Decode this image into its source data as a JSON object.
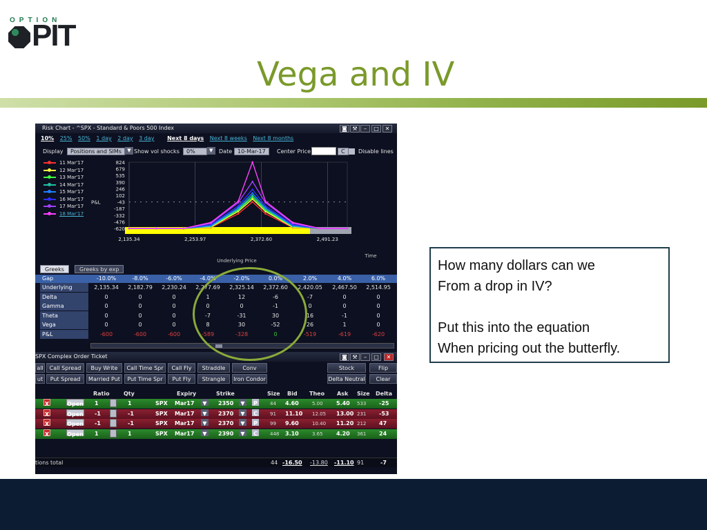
{
  "slide": {
    "logo_top": "OPTION",
    "logo_main": "PIT",
    "title": "Vega and IV",
    "callout_lines": [
      "How many dollars can we",
      "From a drop in IV?",
      "",
      "Put this into the equation",
      "When pricing out the butterfly."
    ]
  },
  "risk_chart": {
    "window_title": "Risk Chart - ^SPX - Standard & Poors 500 Index",
    "range_links": [
      "10%",
      "25%",
      "50%",
      "1 day",
      "2 day",
      "3 day"
    ],
    "period_links": [
      "Next 8 days",
      "Next 8 weeks",
      "Next 8 months"
    ],
    "display_label": "Display",
    "display_value": "Positions and SIMs",
    "vol_label": "Show vol shocks",
    "vol_value": "0%",
    "date_label": "Date",
    "date_value": "10-Mar-17",
    "center_label": "Center Price",
    "center_btn": "C",
    "disable_label": "Disable lines",
    "legend": [
      {
        "label": "11 Mar'17",
        "color": "#ff3030"
      },
      {
        "label": "12 Mar'17",
        "color": "#ffff40"
      },
      {
        "label": "13 Mar'17",
        "color": "#40ff40"
      },
      {
        "label": "14 Mar'17",
        "color": "#20c0a0"
      },
      {
        "label": "15 Mar'17",
        "color": "#2080ff"
      },
      {
        "label": "16 Mar'17",
        "color": "#3030ff"
      },
      {
        "label": "17 Mar'17",
        "color": "#a040ff"
      },
      {
        "label": "18 Mar'17",
        "color": "#ff40ff"
      }
    ],
    "y_axis_label": "P&L",
    "x_axis_label": "Underlying Price",
    "time_label": "Time"
  },
  "chart_data": {
    "type": "line",
    "y_ticks": [
      "824",
      "679",
      "535",
      "390",
      "246",
      "102",
      "-43",
      "-187",
      "-332",
      "-476",
      "-620"
    ],
    "x_ticks": [
      "2,135.34",
      "2,253.97",
      "2,372.60",
      "2,491.23"
    ],
    "ylim": [
      -620,
      824
    ],
    "x": [
      2135.34,
      2182.79,
      2230.24,
      2277.69,
      2325.14,
      2350,
      2372.6,
      2420.05,
      2467.5,
      2514.95
    ],
    "series": [
      {
        "values": [
          -620,
          -620,
          -620,
          -600,
          -300,
          -43,
          -300,
          -600,
          -620,
          -620
        ],
        "color": "#ff3030"
      },
      {
        "values": [
          -620,
          -620,
          -620,
          -590,
          -250,
          20,
          -250,
          -590,
          -620,
          -620
        ],
        "color": "#ffff40"
      },
      {
        "values": [
          -620,
          -620,
          -620,
          -580,
          -220,
          60,
          -220,
          -580,
          -620,
          -620
        ],
        "color": "#40ff40"
      },
      {
        "values": [
          -620,
          -620,
          -620,
          -570,
          -200,
          100,
          -200,
          -570,
          -620,
          -620
        ],
        "color": "#20c0a0"
      },
      {
        "values": [
          -620,
          -620,
          -620,
          -560,
          -170,
          150,
          -170,
          -560,
          -620,
          -620
        ],
        "color": "#2080ff"
      },
      {
        "values": [
          -620,
          -620,
          -620,
          -540,
          -130,
          230,
          -130,
          -540,
          -620,
          -620
        ],
        "color": "#3030ff"
      },
      {
        "values": [
          -620,
          -620,
          -620,
          -510,
          -60,
          400,
          -60,
          -510,
          -620,
          -620
        ],
        "color": "#a040ff"
      },
      {
        "values": [
          -620,
          -620,
          -620,
          -490,
          -30,
          824,
          -30,
          -490,
          -620,
          -620
        ],
        "color": "#ff40ff"
      }
    ]
  },
  "greeks": {
    "tabs": [
      "Greeks",
      "Greeks by exp"
    ],
    "rows": [
      {
        "label": "Gap",
        "cells": [
          "-10.0%",
          "-8.0%",
          "-6.0%",
          "-4.0%",
          "-2.0%",
          "0.0%",
          "2.0%",
          "4.0%",
          "6.0%"
        ]
      },
      {
        "label": "Underlying",
        "cells": [
          "2,135.34",
          "2,182.79",
          "2,230.24",
          "2,277.69",
          "2,325.14",
          "2,372.60",
          "2,420.05",
          "2,467.50",
          "2,514.95"
        ]
      },
      {
        "label": "Delta",
        "cells": [
          "0",
          "0",
          "0",
          "1",
          "12",
          "-6",
          "-7",
          "0",
          "0"
        ]
      },
      {
        "label": "Gamma",
        "cells": [
          "0",
          "0",
          "0",
          "0",
          "0",
          "-1",
          "0",
          "0",
          "0"
        ]
      },
      {
        "label": "Theta",
        "cells": [
          "0",
          "0",
          "0",
          "-7",
          "-31",
          "30",
          "16",
          "-1",
          "0"
        ]
      },
      {
        "label": "Vega",
        "cells": [
          "0",
          "0",
          "0",
          "8",
          "30",
          "-52",
          "26",
          "1",
          "0"
        ]
      },
      {
        "label": "P&L",
        "cells": [
          "-600",
          "-600",
          "-600",
          "-589",
          "-328",
          "0",
          "-519",
          "-619",
          "-620"
        ]
      }
    ]
  },
  "ticket": {
    "title": "SPX Complex Order Ticket",
    "row1": [
      "all",
      "Call Spread",
      "Buy Write",
      "Call Time Spr",
      "Call Fly",
      "Straddle",
      "Conv",
      "Stock",
      "Flip"
    ],
    "row2": [
      "ut",
      "Put Spread",
      "Married Put",
      "Put Time Spr",
      "Put Fly",
      "Strangle",
      "Iron Condor",
      "Delta Neutral",
      "Clear"
    ],
    "headers": [
      "Ratio",
      "Qty",
      "Expiry",
      "Strike",
      "Size",
      "Bid",
      "Theo",
      "Ask",
      "Size",
      "Delta"
    ],
    "legs": [
      {
        "open": "Open",
        "ratio": "1",
        "qty": "1",
        "sym": "SPX",
        "expiry": "Mar17",
        "strike": "2350",
        "pc": "P",
        "bsize": "44",
        "bid": "4.60",
        "theo": "5.00",
        "ask": "5.40",
        "asize": "533",
        "delta": "-25",
        "side": "g"
      },
      {
        "open": "Open",
        "ratio": "-1",
        "qty": "-1",
        "sym": "SPX",
        "expiry": "Mar17",
        "strike": "2370",
        "pc": "C",
        "bsize": "91",
        "bid": "11.10",
        "theo": "12.05",
        "ask": "13.00",
        "asize": "231",
        "delta": "-53",
        "side": "r"
      },
      {
        "open": "Open",
        "ratio": "-1",
        "qty": "-1",
        "sym": "SPX",
        "expiry": "Mar17",
        "strike": "2370",
        "pc": "P",
        "bsize": "99",
        "bid": "9.60",
        "theo": "10.40",
        "ask": "11.20",
        "asize": "212",
        "delta": "47",
        "side": "r"
      },
      {
        "open": "Open",
        "ratio": "1",
        "qty": "1",
        "sym": "SPX",
        "expiry": "Mar17",
        "strike": "2390",
        "pc": "C",
        "bsize": "448",
        "bid": "3.10",
        "theo": "3.65",
        "ask": "4.20",
        "asize": "361",
        "delta": "24",
        "side": "g"
      }
    ],
    "total": {
      "label": "tions total",
      "bsize": "44",
      "bid": "-16.50",
      "theo": "-13.80",
      "ask": "-11.10",
      "asize": "91",
      "delta": "-7"
    }
  }
}
